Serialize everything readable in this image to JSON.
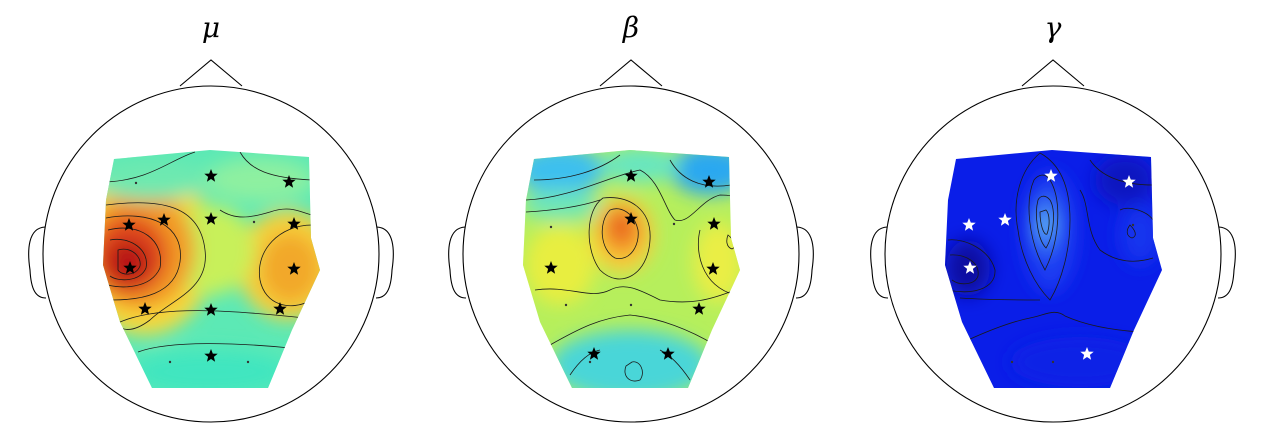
{
  "figure": {
    "panels": [
      {
        "id": "mu",
        "title": "μ",
        "star_color": "#000000",
        "palette": [
          "#2fe6b0",
          "#c8f05a",
          "#fde03a",
          "#f7a02a",
          "#e0481e",
          "#b01010"
        ]
      },
      {
        "id": "beta",
        "title": "β",
        "star_color": "#000000",
        "palette": [
          "#2eb8f0",
          "#5ae6c8",
          "#bff05a",
          "#f3ec3a",
          "#f6a23a",
          "#e65a1a"
        ]
      },
      {
        "id": "gamma",
        "title": "γ",
        "star_color": "#ffffff",
        "palette": [
          "#0a10b8",
          "#0a1ee6",
          "#1f3ff2",
          "#3c78f2",
          "#65c4f6"
        ]
      }
    ]
  }
}
